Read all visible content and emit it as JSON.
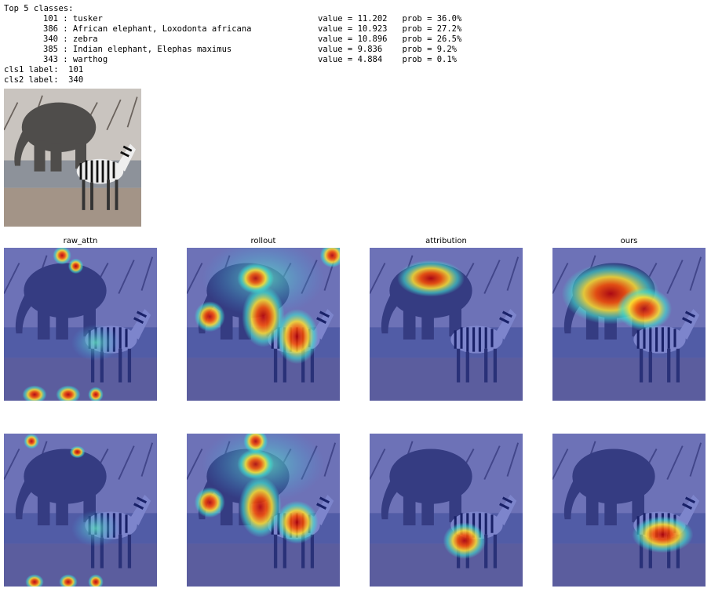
{
  "header": {
    "title": "Top 5 classes:"
  },
  "classes": [
    {
      "label": "101 : tusker",
      "score": "value = 11.202   prob = 36.0%"
    },
    {
      "label": "386 : African elephant, Loxodonta africana",
      "score": "value = 10.923   prob = 27.2%"
    },
    {
      "label": "340 : zebra",
      "score": "value = 10.896   prob = 26.5%"
    },
    {
      "label": "385 : Indian elephant, Elephas maximus",
      "score": "value = 9.836    prob = 9.2%"
    },
    {
      "label": "343 : warthog",
      "score": "value = 4.884    prob = 0.1%"
    }
  ],
  "cls1": "cls1 label:  101",
  "cls2": "cls2 label:  340",
  "panels": {
    "titles": [
      "raw_attn",
      "rollout",
      "attribution",
      "ours"
    ]
  }
}
